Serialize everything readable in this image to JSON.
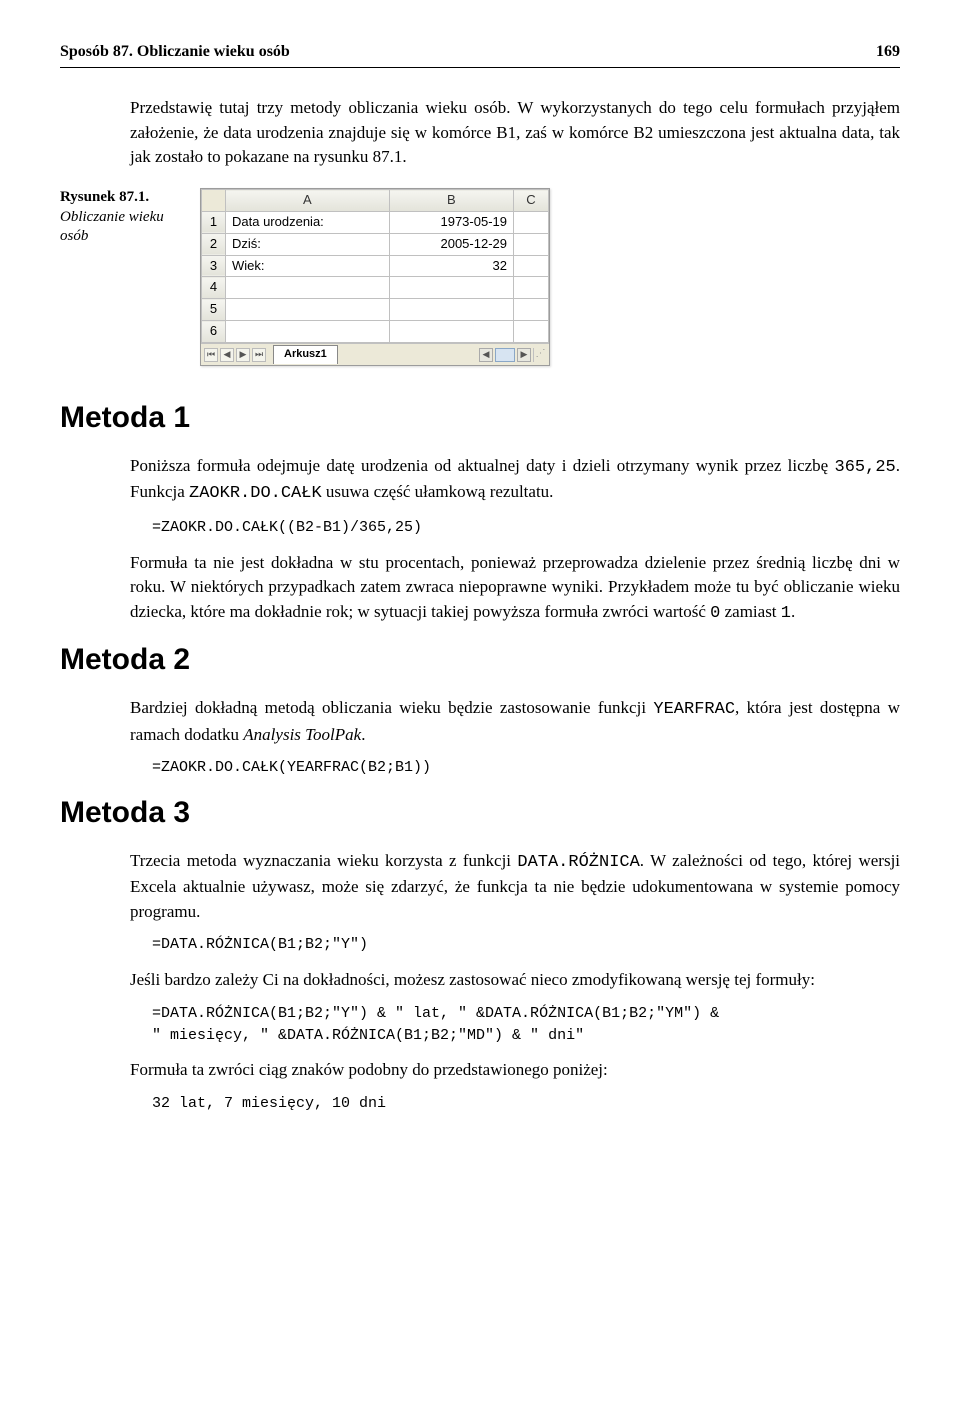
{
  "header": {
    "title": "Sposób 87. Obliczanie wieku osób",
    "page": "169"
  },
  "intro": {
    "p1": "Przedstawię tutaj trzy metody obliczania wieku osób. W wykorzystanych do tego celu formułach przyjąłem założenie, że data urodzenia znajduje się w komórce B1, zaś w komórce B2 umieszczona jest aktualna data, tak jak zostało to pokazane na rysunku 87.1."
  },
  "figure": {
    "caption_title": "Rysunek 87.1.",
    "caption_desc": "Obliczanie wieku osób",
    "sheet_tab": "Arkusz1",
    "columns": [
      "A",
      "B",
      "C"
    ],
    "rows": [
      {
        "n": "1",
        "a": "Data urodzenia:",
        "b": "1973-05-19",
        "c": ""
      },
      {
        "n": "2",
        "a": "Dziś:",
        "b": "2005-12-29",
        "c": ""
      },
      {
        "n": "3",
        "a": "Wiek:",
        "b": "32",
        "c": ""
      },
      {
        "n": "4",
        "a": "",
        "b": "",
        "c": ""
      },
      {
        "n": "5",
        "a": "",
        "b": "",
        "c": ""
      },
      {
        "n": "6",
        "a": "",
        "b": "",
        "c": ""
      }
    ],
    "colors": {
      "header_bg_top": "#f5f5f0",
      "header_bg_bottom": "#e3e3da",
      "border": "#c0c0c0",
      "tabs_bg": "#ece9d8",
      "scroll_thumb": "#d7e4f2"
    }
  },
  "metoda1": {
    "title": "Metoda 1",
    "p1_a": "Poniższa formuła odejmuje datę urodzenia od aktualnej daty i dzieli otrzymany wynik przez liczbę ",
    "p1_num": "365,25",
    "p1_b": ". Funkcja ",
    "p1_func": "ZAOKR.DO.CAŁK",
    "p1_c": " usuwa część ułamkową rezultatu.",
    "code1": "=ZAOKR.DO.CAŁK((B2-B1)/365,25)",
    "p2_a": "Formuła ta nie jest dokładna w stu procentach, ponieważ przeprowadza dzielenie przez średnią liczbę dni w roku. W niektórych przypadkach zatem zwraca niepoprawne wyniki. Przykładem może tu być obliczanie wieku dziecka, które ma dokładnie rok; w sytuacji takiej powyższa formuła zwróci wartość ",
    "p2_zero": "0",
    "p2_b": " zamiast ",
    "p2_one": "1",
    "p2_c": "."
  },
  "metoda2": {
    "title": "Metoda 2",
    "p1_a": "Bardziej dokładną metodą obliczania wieku będzie zastosowanie funkcji ",
    "p1_func": "YEARFRAC",
    "p1_b": ", która jest dostępna w ramach dodatku ",
    "p1_italic": "Analysis ToolPak",
    "p1_c": ".",
    "code1": "=ZAOKR.DO.CAŁK(YEARFRAC(B2;B1))"
  },
  "metoda3": {
    "title": "Metoda 3",
    "p1_a": "Trzecia metoda wyznaczania wieku korzysta z funkcji ",
    "p1_func": "DATA.RÓŻNICA",
    "p1_b": ". W zależności od tego, której wersji Excela aktualnie używasz, może się zdarzyć, że funkcja ta nie będzie udokumentowana w systemie pomocy programu.",
    "code1": "=DATA.RÓŻNICA(B1;B2;\"Y\")",
    "p2": "Jeśli bardzo zależy Ci na dokładności, możesz zastosować nieco zmodyfikowaną wersję tej formuły:",
    "code2": "=DATA.RÓŻNICA(B1;B2;\"Y\") & \" lat, \" &DATA.RÓŻNICA(B1;B2;\"YM\") &\n\" miesięcy, \" &DATA.RÓŻNICA(B1;B2;\"MD\") & \" dni\"",
    "p3": "Formuła ta zwróci ciąg znaków podobny do przedstawionego poniżej:",
    "code3": "32 lat, 7 miesięcy, 10 dni"
  }
}
